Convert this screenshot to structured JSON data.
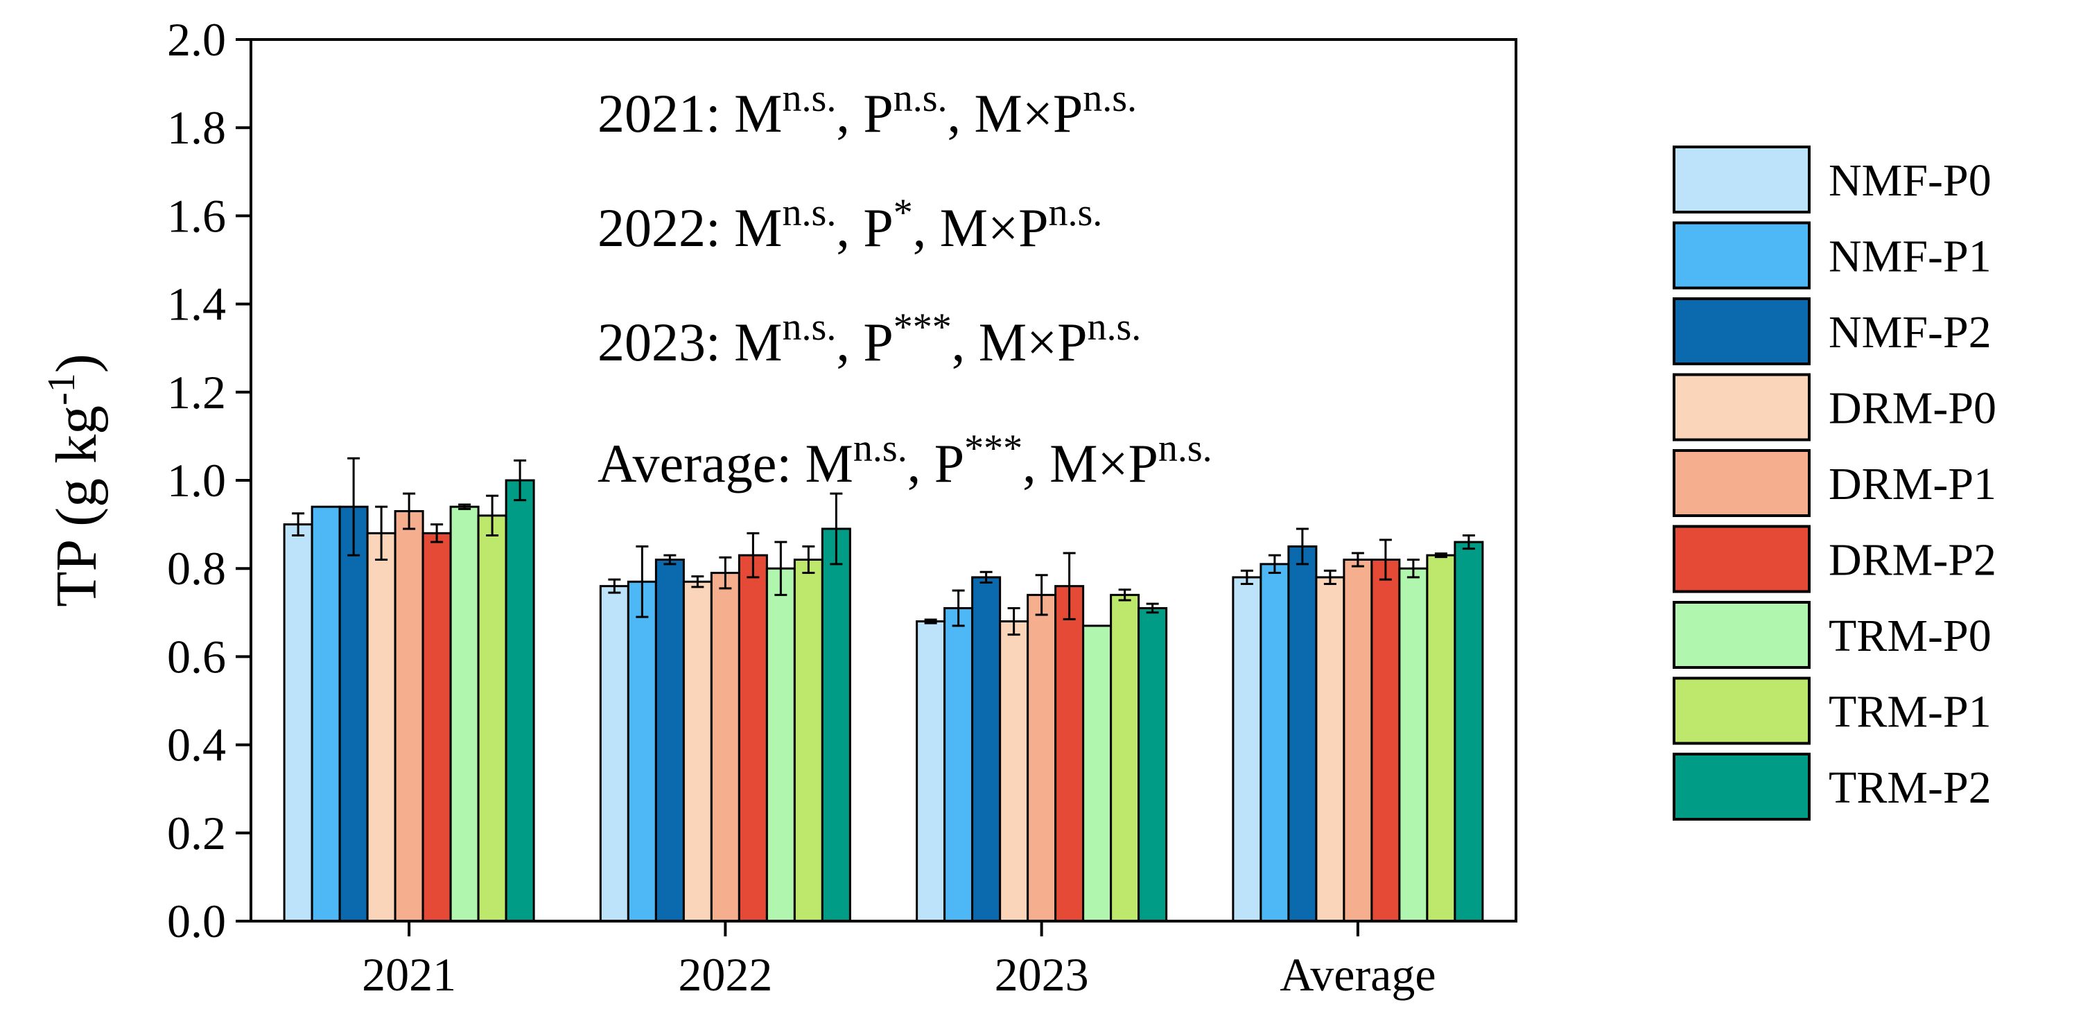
{
  "chart_data": {
    "type": "bar",
    "title": "",
    "xlabel": "",
    "ylabel": "TP (g kg",
    "ylabel_sup": "-1",
    "ylabel_close": ")",
    "ylim": [
      0,
      2.0
    ],
    "yticks": [
      "0.0",
      "0.2",
      "0.4",
      "0.6",
      "0.8",
      "1.0",
      "1.2",
      "1.4",
      "1.6",
      "1.8",
      "2.0"
    ],
    "categories": [
      "2021",
      "2022",
      "2023",
      "Average"
    ],
    "legend_position": "right",
    "series": [
      {
        "name": "NMF-P0",
        "color": "#BDE3FB",
        "values": [
          0.9,
          0.76,
          0.68,
          0.78
        ],
        "errors": [
          0.025,
          0.015,
          0.004,
          0.015
        ]
      },
      {
        "name": "NMF-P1",
        "color": "#4DB8F5",
        "values": [
          0.94,
          0.77,
          0.71,
          0.81
        ],
        "errors": [
          0.0,
          0.08,
          0.04,
          0.02
        ]
      },
      {
        "name": "NMF-P2",
        "color": "#0B69AE",
        "values": [
          0.94,
          0.82,
          0.78,
          0.85
        ],
        "errors": [
          0.11,
          0.01,
          0.012,
          0.04
        ]
      },
      {
        "name": "DRM-P0",
        "color": "#FBD5BA",
        "values": [
          0.88,
          0.77,
          0.68,
          0.78
        ],
        "errors": [
          0.06,
          0.012,
          0.03,
          0.015
        ]
      },
      {
        "name": "DRM-P1",
        "color": "#F5AE8E",
        "values": [
          0.93,
          0.79,
          0.74,
          0.82
        ],
        "errors": [
          0.04,
          0.035,
          0.045,
          0.015
        ]
      },
      {
        "name": "DRM-P2",
        "color": "#E44A35",
        "values": [
          0.88,
          0.83,
          0.76,
          0.82
        ],
        "errors": [
          0.02,
          0.05,
          0.075,
          0.045
        ]
      },
      {
        "name": "TRM-P0",
        "color": "#B1F6AE",
        "values": [
          0.94,
          0.8,
          0.67,
          0.8
        ],
        "errors": [
          0.005,
          0.06,
          0.0,
          0.02
        ]
      },
      {
        "name": "TRM-P1",
        "color": "#BDE86C",
        "values": [
          0.92,
          0.82,
          0.74,
          0.83
        ],
        "errors": [
          0.045,
          0.03,
          0.012,
          0.004
        ]
      },
      {
        "name": "TRM-P2",
        "color": "#009C85",
        "values": [
          1.0,
          0.89,
          0.71,
          0.86
        ],
        "errors": [
          0.045,
          0.08,
          0.01,
          0.015
        ]
      }
    ],
    "annotations": [
      {
        "label": "2021: ",
        "parts": [
          {
            "t": "M"
          },
          {
            "s": "n.s."
          },
          {
            "t": ", P"
          },
          {
            "s": "n.s."
          },
          {
            "t": ", M×P"
          },
          {
            "s": "n.s."
          }
        ]
      },
      {
        "label": "2022: ",
        "parts": [
          {
            "t": "M"
          },
          {
            "s": "n.s."
          },
          {
            "t": ", P"
          },
          {
            "s": "*"
          },
          {
            "t": ", M×P"
          },
          {
            "s": "n.s."
          }
        ]
      },
      {
        "label": "2023: ",
        "parts": [
          {
            "t": "M"
          },
          {
            "s": "n.s."
          },
          {
            "t": ", P"
          },
          {
            "s": "***"
          },
          {
            "t": ", M×P"
          },
          {
            "s": "n.s."
          }
        ]
      },
      {
        "label": "Average: ",
        "parts": [
          {
            "t": "M"
          },
          {
            "s": "n.s."
          },
          {
            "t": ", P"
          },
          {
            "s": "***"
          },
          {
            "t": ", M×P"
          },
          {
            "s": "n.s."
          }
        ]
      }
    ]
  }
}
